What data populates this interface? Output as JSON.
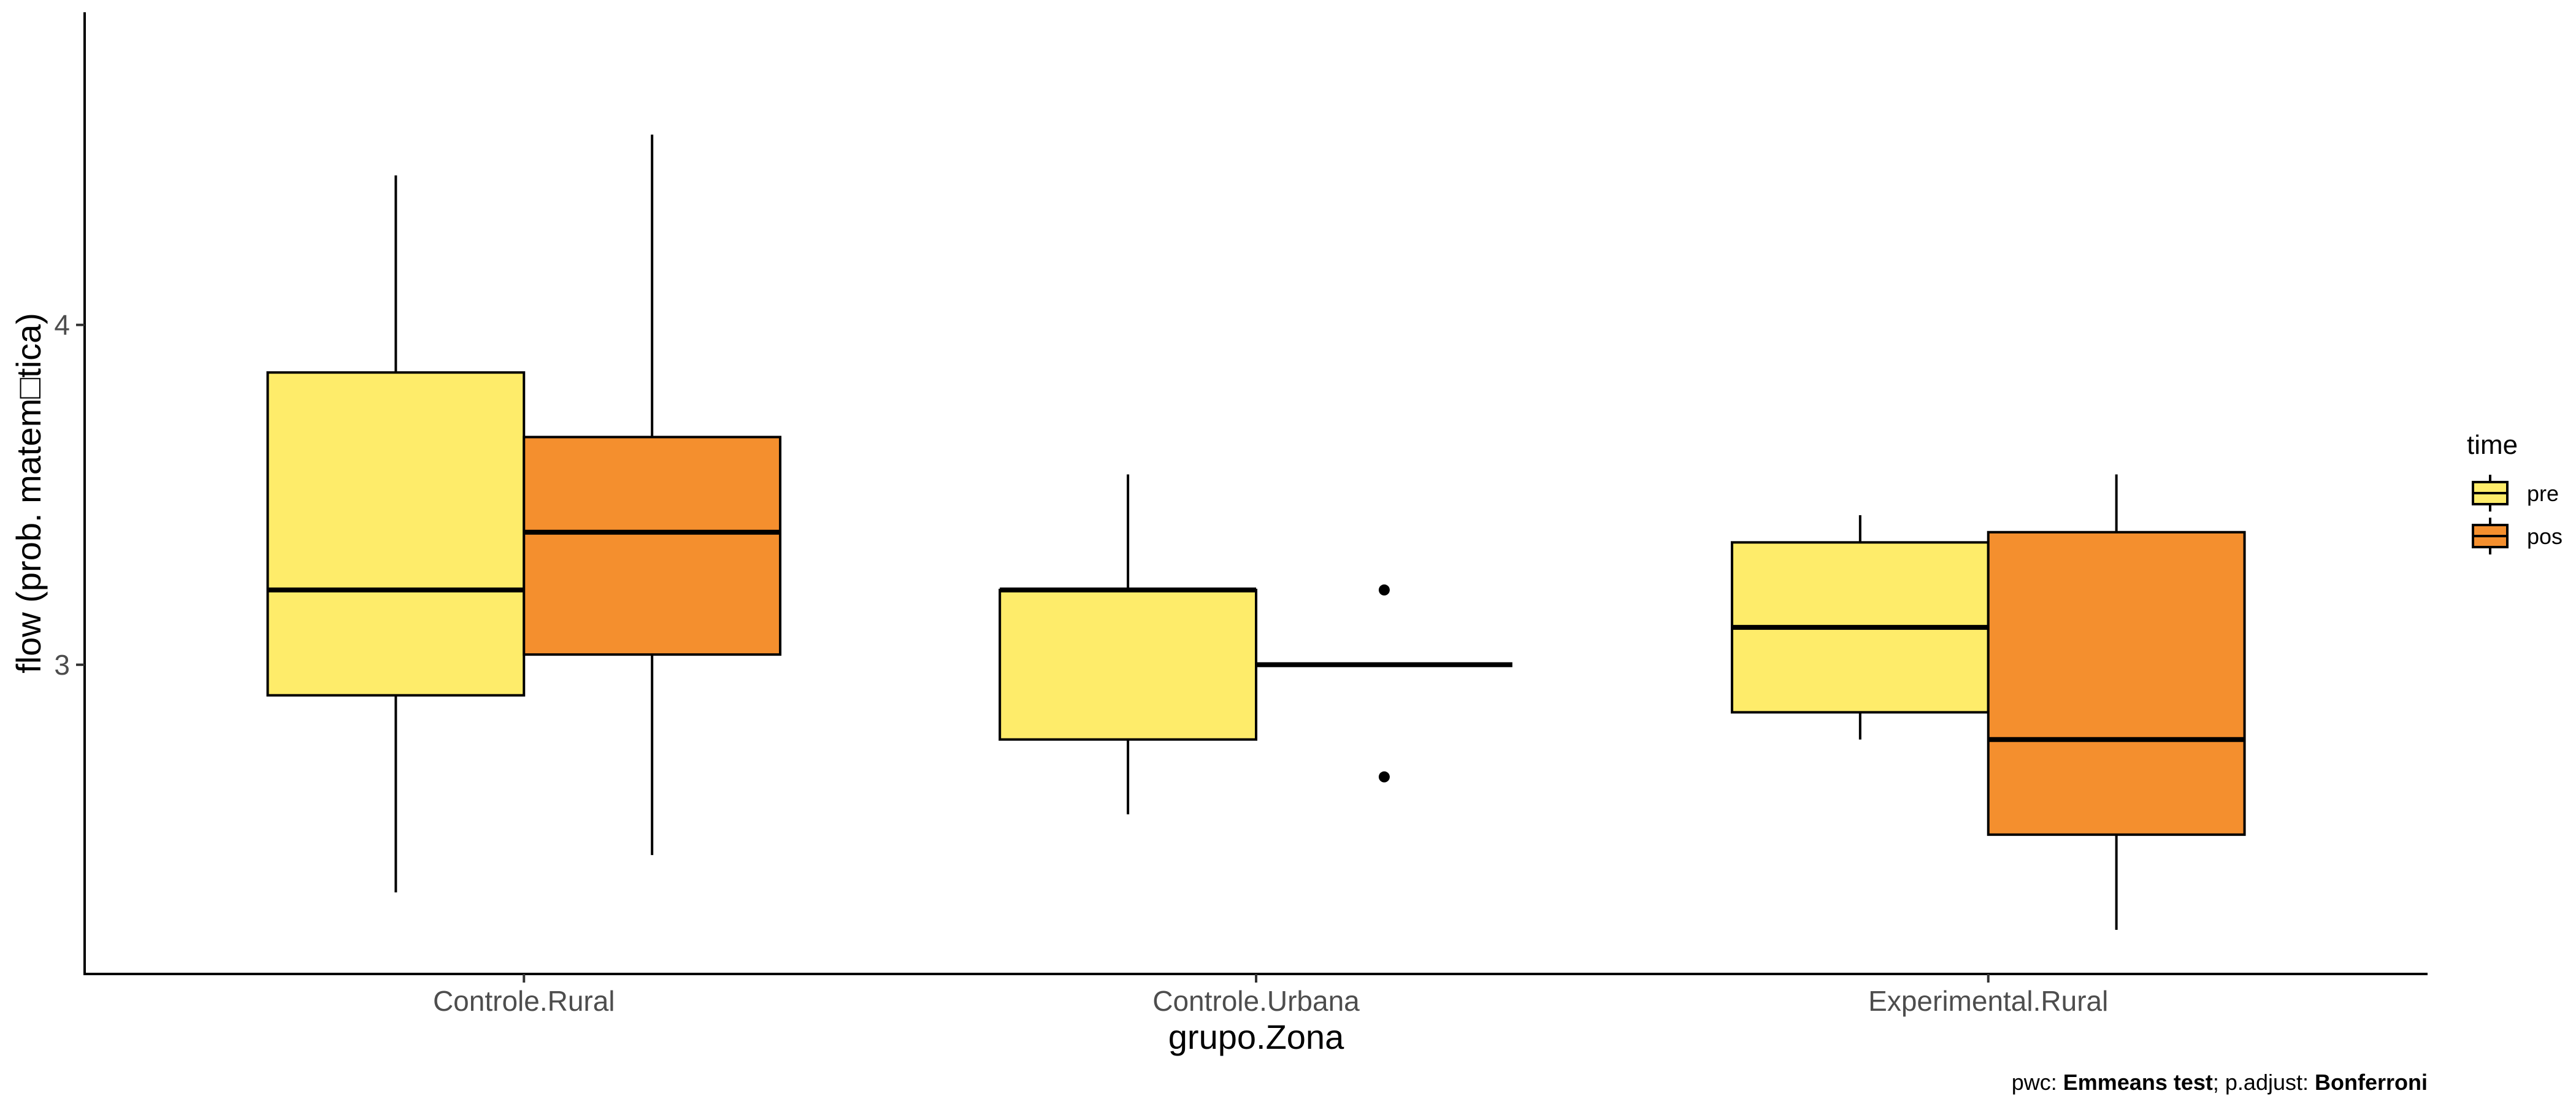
{
  "chart_data": {
    "type": "boxplot",
    "xlabel": "grupo.Zona",
    "ylabel": "flow (prob. matem□tica)",
    "categories": [
      "Controle.Rural",
      "Controle.Urbana",
      "Experimental.Rural"
    ],
    "yticks": [
      3,
      4
    ],
    "ylim": [
      2.09,
      4.92
    ],
    "grid": false,
    "legend": {
      "title": "time",
      "position": "right",
      "entries": [
        {
          "name": "pre",
          "color": "#FEEC6A"
        },
        {
          "name": "pos",
          "color": "#F48F2E"
        }
      ]
    },
    "series": [
      {
        "name": "pre",
        "color": "#FEEC6A",
        "boxes": [
          {
            "category": "Controle.Rural",
            "whisker_low": 2.33,
            "q1": 2.91,
            "median": 3.22,
            "q3": 3.86,
            "whisker_high": 4.44,
            "outliers": []
          },
          {
            "category": "Controle.Urbana",
            "whisker_low": 2.56,
            "q1": 2.78,
            "median": 3.22,
            "q3": 3.22,
            "whisker_high": 3.56,
            "outliers": []
          },
          {
            "category": "Experimental.Rural",
            "whisker_low": 2.78,
            "q1": 2.86,
            "median": 3.11,
            "q3": 3.36,
            "whisker_high": 3.44,
            "outliers": []
          }
        ]
      },
      {
        "name": "pos",
        "color": "#F48F2E",
        "boxes": [
          {
            "category": "Controle.Rural",
            "whisker_low": 2.44,
            "q1": 3.03,
            "median": 3.39,
            "q3": 3.67,
            "whisker_high": 4.56,
            "outliers": []
          },
          {
            "category": "Controle.Urbana",
            "whisker_low": 3.0,
            "q1": 3.0,
            "median": 3.0,
            "q3": 3.0,
            "whisker_high": 3.0,
            "outliers": [
              3.22,
              2.67
            ]
          },
          {
            "category": "Experimental.Rural",
            "whisker_low": 2.22,
            "q1": 2.5,
            "median": 2.78,
            "q3": 3.39,
            "whisker_high": 3.56,
            "outliers": []
          }
        ]
      }
    ],
    "caption": {
      "parts": [
        {
          "text": "pwc: ",
          "bold": false
        },
        {
          "text": "Emmeans test",
          "bold": true
        },
        {
          "text": "; p.adjust: ",
          "bold": false
        },
        {
          "text": "Bonferroni",
          "bold": true
        }
      ]
    }
  }
}
